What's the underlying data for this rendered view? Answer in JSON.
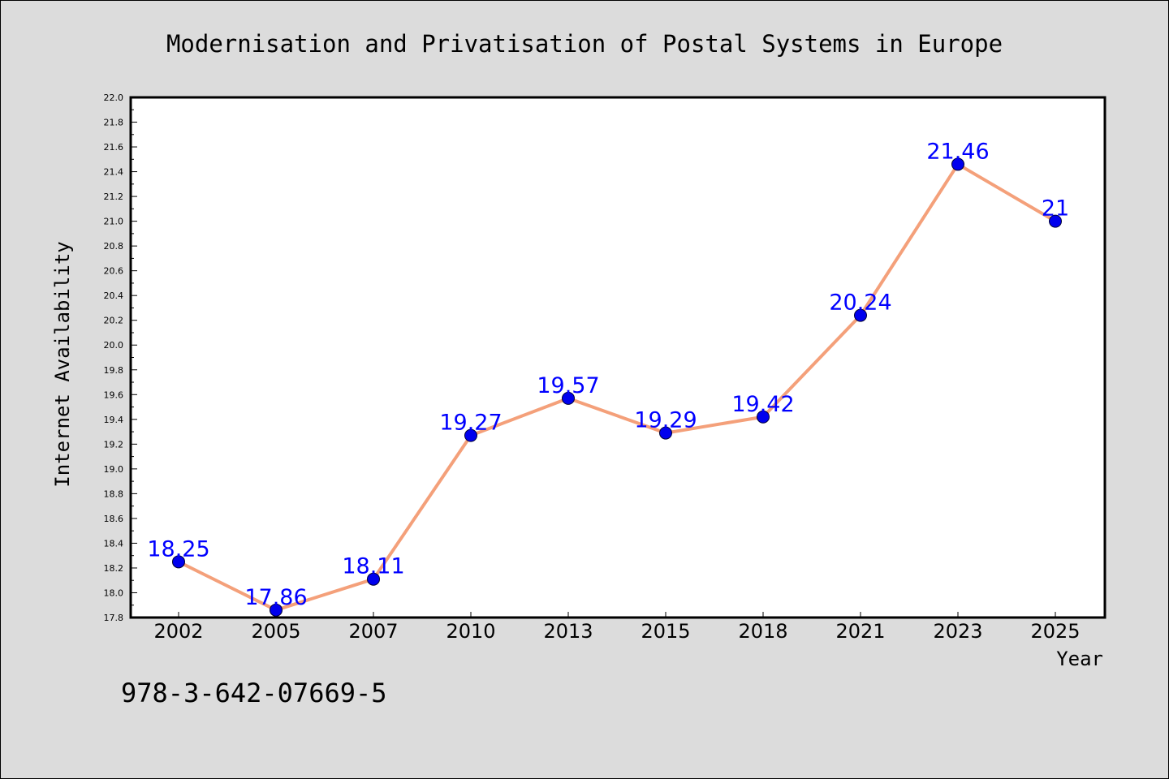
{
  "chart_data": {
    "type": "line",
    "title": "Modernisation and Privatisation of Postal Systems in Europe",
    "xlabel": "Year",
    "ylabel": "Internet Availability",
    "categories": [
      "2002",
      "2005",
      "2007",
      "2010",
      "2013",
      "2015",
      "2018",
      "2021",
      "2023",
      "2025"
    ],
    "series": [
      {
        "values": [
          18.25,
          17.86,
          18.11,
          19.27,
          19.57,
          19.29,
          19.42,
          20.24,
          21.46,
          21.0
        ],
        "labels": [
          "18.25",
          "17.86",
          "18.11",
          "19.27",
          "19.57",
          "19.29",
          "19.42",
          "20.24",
          "21.46",
          "21"
        ],
        "line_color": "#f4a07a",
        "marker_color": "#0000ee"
      }
    ],
    "ylim": [
      17.8,
      22.0
    ],
    "yticks": [
      "17.8",
      "18.0",
      "18.2",
      "18.4",
      "18.6",
      "18.8",
      "19.0",
      "19.2",
      "19.4",
      "19.6",
      "19.8",
      "20.0",
      "20.2",
      "20.4",
      "20.6",
      "20.8",
      "21.0",
      "21.2",
      "21.4",
      "21.6",
      "21.8",
      "22.0"
    ],
    "grid": false,
    "legend": "none",
    "label_color": "#0000ff",
    "background": "#dcdcdc",
    "plot_background": "#ffffff"
  },
  "footer": {
    "isbn": "978-3-642-07669-5"
  }
}
